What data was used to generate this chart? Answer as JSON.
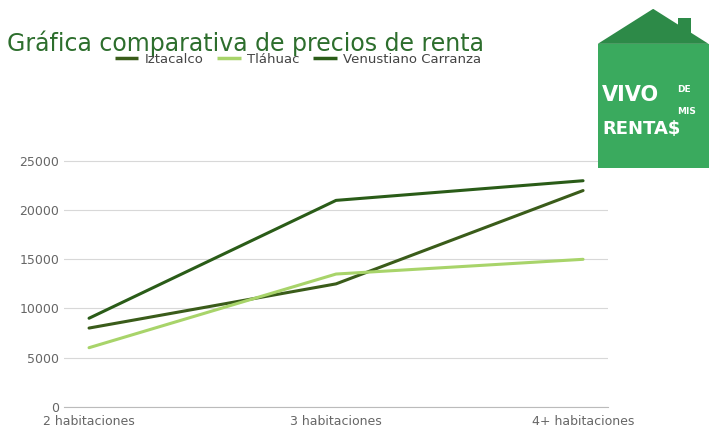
{
  "title": "Gráfica comparativa de precios de renta",
  "categories": [
    "2 habitaciones",
    "3 habitaciones",
    "4+ habitaciones"
  ],
  "series": [
    {
      "name": "Iztacalco",
      "values": [
        8000,
        12500,
        22000
      ],
      "color": "#3a5c1a",
      "linewidth": 2.2
    },
    {
      "name": "Tláhuac",
      "values": [
        6000,
        13500,
        15000
      ],
      "color": "#a8d46a",
      "linewidth": 2.2
    },
    {
      "name": "Venustiano Carranza",
      "values": [
        9000,
        21000,
        23000
      ],
      "color": "#2a5c18",
      "linewidth": 2.2
    }
  ],
  "ylim": [
    0,
    27000
  ],
  "yticks": [
    0,
    5000,
    10000,
    15000,
    20000,
    25000
  ],
  "background_color": "#ffffff",
  "grid_color": "#d8d8d8",
  "title_fontsize": 17,
  "title_color": "#2d6e2d",
  "tick_fontsize": 9,
  "legend_fontsize": 9.5,
  "logo_bg_color": "#3aaa5e",
  "logo_text_color": "#ffffff"
}
